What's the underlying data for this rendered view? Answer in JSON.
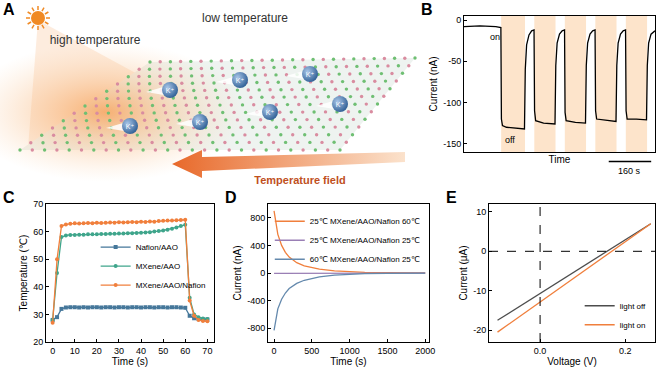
{
  "diagram": {
    "panel": "A",
    "top_labels": [
      "high temperature",
      "low temperature"
    ],
    "field_label": "Temperature field",
    "ion_label": "K⁺",
    "ion_count": 7
  },
  "chart_data": [
    {
      "panel": "B",
      "type": "line",
      "x_label": "Time",
      "y_label": "Current (nA)",
      "color": "#000000",
      "x": [
        0,
        60,
        120,
        139,
        141,
        145,
        160,
        200,
        228,
        231,
        236,
        245,
        255,
        264,
        266,
        270,
        300,
        343,
        346,
        351,
        360,
        370,
        379,
        381,
        385,
        420,
        458,
        461,
        466,
        475,
        485,
        494,
        496,
        500,
        540,
        573,
        576,
        581,
        590,
        600,
        609,
        611,
        615,
        650,
        688,
        691,
        696,
        705,
        720
      ],
      "values": [
        -8,
        -7,
        -8,
        -9,
        -120,
        -128,
        -130,
        -131,
        -132,
        -60,
        -30,
        -18,
        -13,
        -12,
        -110,
        -122,
        -125,
        -126,
        -55,
        -28,
        -17,
        -13,
        -12,
        -112,
        -122,
        -124,
        -125,
        -55,
        -28,
        -17,
        -13,
        -12,
        -110,
        -120,
        -122,
        -123,
        -55,
        -28,
        -17,
        -13,
        -12,
        -110,
        -120,
        -120,
        -121,
        -55,
        -28,
        -17,
        -13
      ],
      "xlim": [
        0,
        720
      ],
      "ylim": [
        -160,
        5
      ],
      "yticks": [
        -150,
        -100,
        -50,
        0
      ],
      "tick_labels": "y",
      "shaded": [
        [
          140,
          230
        ],
        [
          265,
          345
        ],
        [
          380,
          460
        ],
        [
          495,
          575
        ],
        [
          610,
          690
        ]
      ],
      "annotations": [
        {
          "text": "on",
          "x": 115,
          "y": -20
        },
        {
          "text": "off",
          "x": 175,
          "y": -145
        }
      ],
      "scale_bar": {
        "length": 160,
        "label": "160 s"
      }
    },
    {
      "panel": "C",
      "type": "line",
      "x_label": "Time (s)",
      "y_label": "Temperature (℃)",
      "legend": "center right",
      "x": [
        0,
        2,
        4,
        6,
        8,
        10,
        12,
        14,
        16,
        18,
        20,
        22,
        24,
        26,
        28,
        30,
        32,
        34,
        36,
        38,
        40,
        42,
        44,
        46,
        48,
        50,
        52,
        54,
        56,
        58,
        60,
        62,
        64,
        66,
        68,
        70
      ],
      "series": [
        {
          "name": "Nafion/AAO",
          "color": "#45779a",
          "marker": "square",
          "values": [
            28,
            29,
            32,
            32.5,
            32.6,
            32.6,
            32.5,
            32.6,
            32.5,
            32.6,
            32.6,
            32.5,
            32.6,
            32.6,
            32.5,
            32.6,
            32.6,
            32.5,
            32.6,
            32.6,
            32.5,
            32.6,
            32.6,
            32.5,
            32.6,
            32.6,
            32.5,
            32.6,
            32.6,
            32.5,
            32.4,
            29.5,
            28.6,
            28.3,
            28.2,
            28.2
          ]
        },
        {
          "name": "MXene/AAO",
          "color": "#3fa58b",
          "marker": "circle",
          "values": [
            28,
            45,
            58,
            58.6,
            58.8,
            58.8,
            58.9,
            58.9,
            59,
            59,
            59,
            59.1,
            59.1,
            59.2,
            59.2,
            59.3,
            59.3,
            59.4,
            59.4,
            59.5,
            59.6,
            59.7,
            59.8,
            60,
            60.2,
            60.4,
            60.7,
            61,
            61.5,
            62,
            62.5,
            36,
            30,
            29,
            28.5,
            28.3
          ]
        },
        {
          "name": "MXene/AAO/Nafion",
          "color": "#f07f3c",
          "marker": "circle",
          "values": [
            27,
            50,
            62,
            62.6,
            62.8,
            63,
            62.9,
            63,
            63.1,
            63,
            63.2,
            63.1,
            63.2,
            63.3,
            63.2,
            63.4,
            63.3,
            63.4,
            63.5,
            63.4,
            63.6,
            63.5,
            63.7,
            63.6,
            63.8,
            63.9,
            64,
            64,
            64.1,
            64.2,
            64.3,
            35,
            29.5,
            28,
            27.6,
            27.5
          ]
        }
      ],
      "xlim": [
        -3,
        73
      ],
      "ylim": [
        20,
        70
      ],
      "xticks": [
        0,
        10,
        20,
        30,
        40,
        50,
        60,
        70
      ],
      "yticks": [
        20,
        30,
        40,
        50,
        60,
        70
      ]
    },
    {
      "panel": "D",
      "type": "line",
      "x_label": "Time (s)",
      "y_label": "Current (nA)",
      "legend": "upper right",
      "x": [
        0,
        25,
        50,
        100,
        150,
        200,
        300,
        400,
        500,
        600,
        800,
        1000,
        1200,
        1500,
        2000
      ],
      "series": [
        {
          "name": "25℃ MXene/AAO/Nafion 60℃",
          "color": "#f07f3c",
          "values": [
            900,
            700,
            560,
            400,
            300,
            230,
            150,
            105,
            75,
            55,
            30,
            17,
            10,
            5,
            2
          ]
        },
        {
          "name": "25℃ MXene/AAO/Nafion 25℃",
          "color": "#9a7fb5",
          "values": [
            -5,
            -5,
            -5,
            -5,
            -5,
            -4,
            -4,
            -4,
            -3,
            -3,
            -3,
            -2,
            -2,
            -2,
            -2
          ]
        },
        {
          "name": "60℃ MXene/AAO/Nafion 25℃",
          "color": "#6489ad",
          "values": [
            -830,
            -650,
            -520,
            -380,
            -290,
            -225,
            -150,
            -105,
            -75,
            -55,
            -30,
            -17,
            -10,
            -5,
            -2
          ]
        }
      ],
      "xlim": [
        -80,
        2050
      ],
      "ylim": [
        -1000,
        1000
      ],
      "xticks": [
        0,
        500,
        1000,
        1500,
        2000
      ],
      "yticks": [
        -800,
        -400,
        0,
        400,
        800
      ]
    },
    {
      "panel": "E",
      "type": "line",
      "x_label": "Voltage (V)",
      "y_label": "Current (μA)",
      "legend": "lower right",
      "x": [
        -0.1,
        -0.05,
        0,
        0.05,
        0.1,
        0.15,
        0.2,
        0.25,
        0.26
      ],
      "series": [
        {
          "name": "light off",
          "color": "#4d4d4d",
          "line_style": "solid",
          "values": [
            -17.5,
            -14.1,
            -10.7,
            -7.3,
            -3.9,
            -0.5,
            2.9,
            6.3,
            7.0
          ]
        },
        {
          "name": "light on",
          "color": "#f07f3c",
          "line_style": "solid",
          "values": [
            -20.5,
            -16.7,
            -12.9,
            -9.0,
            -5.2,
            -1.4,
            2.4,
            6.2,
            7.0
          ]
        }
      ],
      "vlines": [
        0
      ],
      "hlines": [
        0
      ],
      "xlim": [
        -0.12,
        0.27
      ],
      "ylim": [
        -23,
        12
      ],
      "xticks": [
        {
          "value": 0,
          "label": "0.0"
        },
        0.2
      ],
      "yticks": [
        -20,
        -10,
        0,
        10
      ]
    }
  ]
}
